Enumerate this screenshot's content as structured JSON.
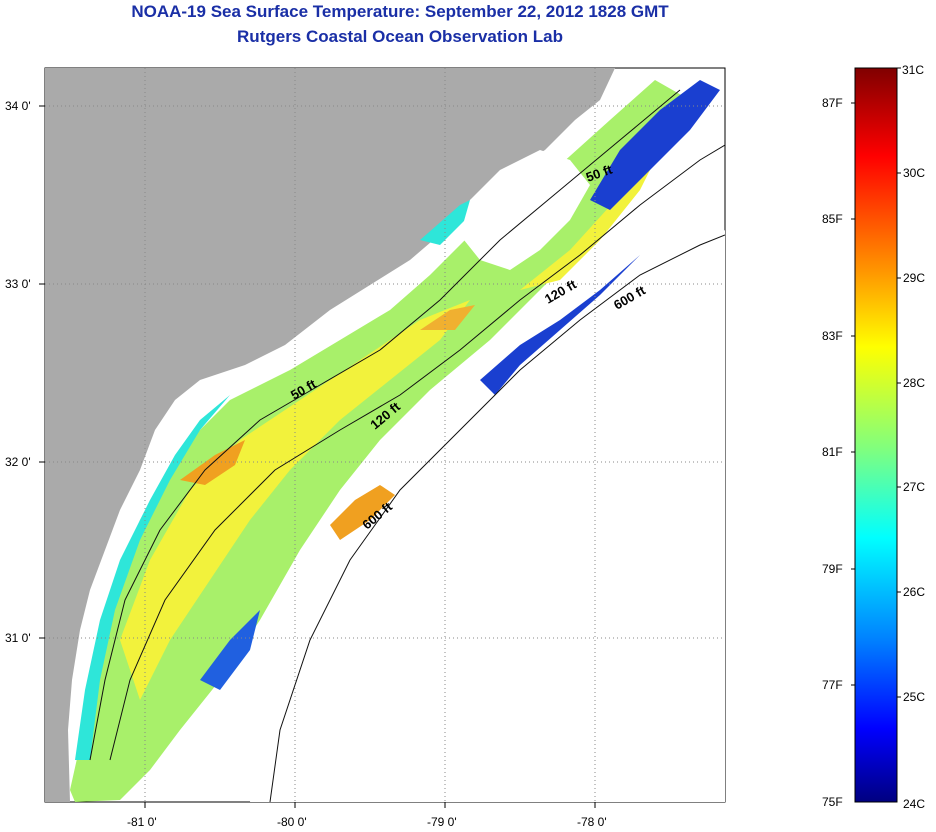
{
  "title": "NOAA-19 Sea Surface Temperature:  September 22, 2012 1828 GMT",
  "subtitle": "Rutgers Coastal Ocean Observation Lab",
  "map": {
    "lon_labels": [
      "-81 0'",
      "-80 0'",
      "-79 0'",
      "-78 0'"
    ],
    "lat_labels": [
      "34 0'",
      "33 0'",
      "32 0'",
      "31 0'"
    ],
    "contour_labels": [
      "50 ft",
      "120 ft",
      "600 ft",
      "50 ft",
      "120 ft",
      "600 ft"
    ],
    "colors": {
      "land": "#aaaaaa",
      "no_data": "#ffffff",
      "grid": "#888888"
    }
  },
  "colorbar": {
    "celsius_labels": [
      "31C",
      "30C",
      "29C",
      "28C",
      "27C",
      "26C",
      "25C",
      "24C"
    ],
    "fahrenheit_labels": [
      "87F",
      "85F",
      "83F",
      "81F",
      "79F",
      "77F",
      "75F"
    ],
    "range_c": [
      24,
      31
    ],
    "colors": [
      "#800000",
      "#ff0000",
      "#ff8c00",
      "#ffff00",
      "#7fff7f",
      "#00ffff",
      "#0080ff",
      "#0000cc",
      "#000080"
    ]
  }
}
